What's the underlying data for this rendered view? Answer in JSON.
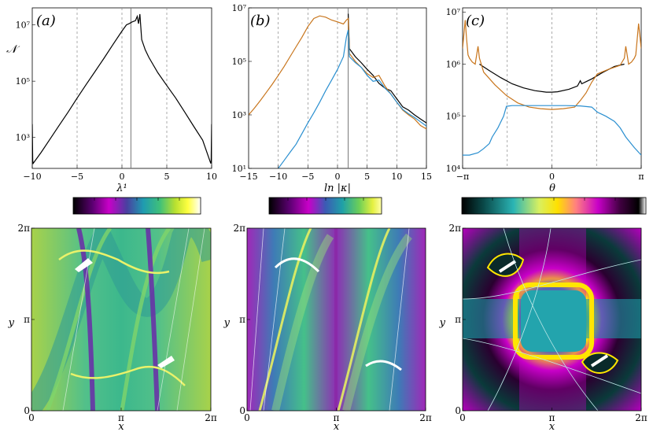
{
  "chart_data": [
    {
      "type": "line",
      "panel_label": "(a)",
      "xlabel": "λ¹",
      "ylabel": "𝒩",
      "xlim": [
        -10,
        10
      ],
      "ylim": [
        80,
        40000000
      ],
      "yscale": "log",
      "xticks": [
        "−10",
        "−5",
        "0",
        "5",
        "10"
      ],
      "yticks": [
        "10⁷",
        "10⁵",
        "10³"
      ],
      "dashed_lines_x": [
        -5,
        0,
        5
      ],
      "solid_line_x": [
        1
      ],
      "series": [
        {
          "color": "#000000",
          "x": [
            -10,
            -9.95,
            -9.9,
            -9,
            -8,
            -7,
            -6,
            -5,
            -4,
            -3,
            -2,
            -1,
            0,
            0.5,
            0.8,
            1.0,
            1.2,
            1.5,
            1.7,
            1.85,
            2.0,
            2.2,
            2.6,
            3,
            4,
            5,
            6,
            7,
            8,
            9,
            9.9,
            9.95,
            10
          ],
          "y": [
            3000,
            150,
            120,
            300,
            900,
            2700,
            8000,
            25000,
            75000,
            220000,
            650000,
            2000000,
            6000000,
            10000000,
            11000000,
            12000000,
            13000000,
            14000000,
            20000000,
            11000000,
            24000000,
            3000000,
            1300000,
            700000,
            200000,
            70000,
            25000,
            8000,
            2500,
            800,
            120,
            150,
            3000
          ]
        }
      ]
    },
    {
      "type": "line",
      "panel_label": "(b)",
      "xlabel": "ln |κ|",
      "xlim": [
        -15,
        15
      ],
      "ylim": [
        10,
        10000000
      ],
      "yscale": "log",
      "xticks": [
        "−15",
        "−10",
        "−5",
        "0",
        "5",
        "10",
        "15"
      ],
      "yticks": [
        "10⁷",
        "10⁵",
        "10³",
        "10¹"
      ],
      "dashed_lines_x": [
        -10,
        -5,
        0,
        5,
        10
      ],
      "solid_line_x": [
        1.8
      ],
      "series": [
        {
          "color": "#000000",
          "x": [
            1.8,
            2,
            3,
            4,
            5,
            6,
            7,
            8,
            9,
            10,
            11,
            12,
            13,
            14,
            15
          ],
          "y": [
            6000000,
            300000,
            150000,
            90000,
            50000,
            30000,
            15000,
            10000,
            8000,
            4000,
            2000,
            1500,
            1000,
            700,
            500
          ]
        },
        {
          "color": "#c8751c",
          "x": [
            -15,
            -14,
            -13,
            -12,
            -11,
            -10,
            -9,
            -8,
            -7,
            -6,
            -5,
            -4,
            -3,
            -2,
            -1,
            0,
            1,
            1.5,
            1.8,
            2,
            3,
            4,
            5,
            6,
            7,
            8,
            9,
            10,
            11,
            12,
            13,
            14,
            15
          ],
          "y": [
            1000,
            1800,
            3500,
            7000,
            14000,
            30000,
            65000,
            150000,
            350000,
            800000,
            2000000,
            4000000,
            5000000,
            4500000,
            3500000,
            3000000,
            2500000,
            3500000,
            4000000,
            200000,
            100000,
            60000,
            35000,
            25000,
            30000,
            12000,
            6000,
            3000,
            1500,
            1000,
            700,
            400,
            300
          ]
        },
        {
          "color": "#2a8fd0",
          "x": [
            -10,
            -9,
            -8,
            -7,
            -6,
            -5,
            -4,
            -3,
            -2,
            -1,
            0,
            1,
            1.5,
            1.8,
            2,
            3,
            4,
            5,
            6,
            7,
            8,
            9,
            10,
            11,
            12,
            13,
            14,
            15
          ],
          "y": [
            10,
            20,
            40,
            80,
            200,
            500,
            1200,
            3000,
            8000,
            20000,
            50000,
            150000,
            800000,
            1500000,
            150000,
            90000,
            60000,
            30000,
            18000,
            20000,
            10000,
            6000,
            3000,
            1600,
            1100,
            800,
            550,
            380
          ]
        }
      ]
    },
    {
      "type": "line",
      "panel_label": "(c)",
      "xlabel": "θ",
      "xlim": [
        -3.1416,
        3.1416
      ],
      "ylim": [
        10000,
        12000000
      ],
      "yscale": "log",
      "xticks": [
        "−π",
        "0",
        "π"
      ],
      "yticks": [
        "10⁷",
        "10⁶",
        "10⁵",
        "10⁴"
      ],
      "dashed_lines_x": [
        -1.5708,
        0,
        1.5708
      ],
      "series": [
        {
          "color": "#000000",
          "x": [
            -2.55,
            -2.2,
            -1.8,
            -1.4,
            -1.0,
            -0.6,
            -0.2,
            0,
            0.2,
            0.6,
            0.9,
            1.0,
            1.05,
            1.2,
            1.4,
            1.8,
            2.2,
            2.55
          ],
          "y": [
            1000000,
            750000,
            550000,
            420000,
            350000,
            310000,
            290000,
            290000,
            295000,
            330000,
            380000,
            480000,
            420000,
            460000,
            520000,
            700000,
            900000,
            1000000
          ]
        },
        {
          "color": "#c8751c",
          "x": [
            -3.1416,
            -3.05,
            -3.0,
            -2.95,
            -2.9,
            -2.8,
            -2.7,
            -2.6,
            -2.55,
            -2.4,
            -2.0,
            -1.6,
            -1.2,
            -0.8,
            -0.4,
            0,
            0.4,
            0.8,
            1.0,
            1.2,
            1.4,
            1.6,
            2.0,
            2.4,
            2.55,
            2.6,
            2.7,
            2.8,
            2.9,
            2.95,
            3.0,
            3.05,
            3.1416
          ],
          "y": [
            2000000,
            7000000,
            3000000,
            1500000,
            1300000,
            1100000,
            1000000,
            2200000,
            1300000,
            700000,
            400000,
            250000,
            180000,
            150000,
            140000,
            135000,
            140000,
            150000,
            200000,
            280000,
            450000,
            650000,
            800000,
            950000,
            1300000,
            2200000,
            1000000,
            1100000,
            1300000,
            1500000,
            3000000,
            6000000,
            2000000
          ]
        },
        {
          "color": "#2a8fd0",
          "x": [
            -3.1416,
            -2.9,
            -2.6,
            -2.4,
            -2.2,
            -2.1,
            -1.9,
            -1.7,
            -1.6,
            -1.4,
            -1.0,
            -0.5,
            0,
            0.5,
            1.0,
            1.4,
            1.6,
            1.9,
            2.2,
            2.4,
            2.6,
            2.9,
            3.1416
          ],
          "y": [
            18000,
            18000,
            20000,
            24000,
            30000,
            40000,
            60000,
            100000,
            155000,
            160000,
            160000,
            160000,
            160000,
            160000,
            158000,
            150000,
            120000,
            100000,
            80000,
            60000,
            40000,
            25000,
            18000
          ]
        }
      ]
    },
    {
      "type": "heatmap",
      "colorbar": "viridis-magenta",
      "xlabel": "x",
      "ylabel": "y",
      "xlim": [
        0,
        6.2832
      ],
      "ylim": [
        0,
        6.2832
      ],
      "xticks": [
        "0",
        "π",
        "2π"
      ],
      "yticks": [
        "0",
        "π",
        "2π"
      ]
    },
    {
      "type": "heatmap",
      "colorbar": "magenta-viridis",
      "xlabel": "x",
      "ylabel": "y",
      "xlim": [
        0,
        6.2832
      ],
      "ylim": [
        0,
        6.2832
      ],
      "xticks": [
        "0",
        "π",
        "2π"
      ],
      "yticks": [
        "0",
        "π",
        "2π"
      ]
    },
    {
      "type": "heatmap",
      "colorbar": "cyan-yellow-magenta-black",
      "xlabel": "x",
      "ylabel": "y",
      "xlim": [
        0,
        6.2832
      ],
      "ylim": [
        0,
        6.2832
      ],
      "xticks": [
        "0",
        "π",
        "2π"
      ],
      "yticks": [
        "0",
        "π",
        "2π"
      ]
    }
  ]
}
